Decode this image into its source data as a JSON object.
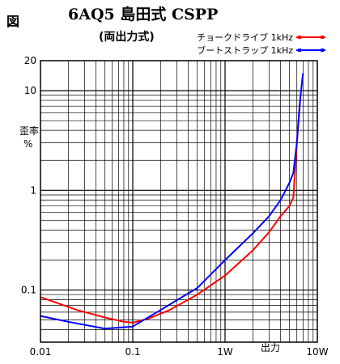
{
  "figure_label": "図",
  "chart_data": {
    "type": "line",
    "title": "6AQ5 島田式 CSPP",
    "subtitle": "(両出力式)",
    "xlabel": "出力",
    "ylabel_lines": [
      "歪率",
      "%"
    ],
    "x_scale": "log",
    "y_scale": "log",
    "xlim": [
      0.01,
      10
    ],
    "ylim": [
      0.03,
      20
    ],
    "x_ticks": [
      {
        "value": 0.01,
        "label": "0.01"
      },
      {
        "value": 0.1,
        "label": "0.1"
      },
      {
        "value": 1,
        "label": "1W"
      },
      {
        "value": 10,
        "label": "10W"
      }
    ],
    "y_ticks": [
      {
        "value": 0.1,
        "label": "0.1"
      },
      {
        "value": 1,
        "label": "1"
      },
      {
        "value": 10,
        "label": "10"
      },
      {
        "value": 20,
        "label": "20"
      }
    ],
    "grid": true,
    "legend_position": "top-right",
    "series": [
      {
        "name": "チョークドライブ 1kHz",
        "color": "#ff0000",
        "points": [
          [
            0.01,
            0.085
          ],
          [
            0.025,
            0.063
          ],
          [
            0.05,
            0.053
          ],
          [
            0.08,
            0.048
          ],
          [
            0.1,
            0.047
          ],
          [
            0.15,
            0.052
          ],
          [
            0.25,
            0.063
          ],
          [
            0.5,
            0.09
          ],
          [
            1,
            0.14
          ],
          [
            2,
            0.25
          ],
          [
            3,
            0.38
          ],
          [
            4,
            0.55
          ],
          [
            5,
            0.7
          ],
          [
            5.5,
            0.85
          ],
          [
            6,
            3
          ],
          [
            6.5,
            8
          ]
        ]
      },
      {
        "name": "ブートストラップ 1kHz",
        "color": "#0000ff",
        "points": [
          [
            0.01,
            0.055
          ],
          [
            0.02,
            0.048
          ],
          [
            0.05,
            0.041
          ],
          [
            0.1,
            0.043
          ],
          [
            0.2,
            0.063
          ],
          [
            0.5,
            0.105
          ],
          [
            1,
            0.2
          ],
          [
            2,
            0.37
          ],
          [
            3,
            0.55
          ],
          [
            4,
            0.8
          ],
          [
            5,
            1.2
          ],
          [
            5.5,
            1.5
          ],
          [
            6,
            3
          ],
          [
            6.5,
            8
          ],
          [
            7,
            15
          ]
        ]
      }
    ]
  }
}
